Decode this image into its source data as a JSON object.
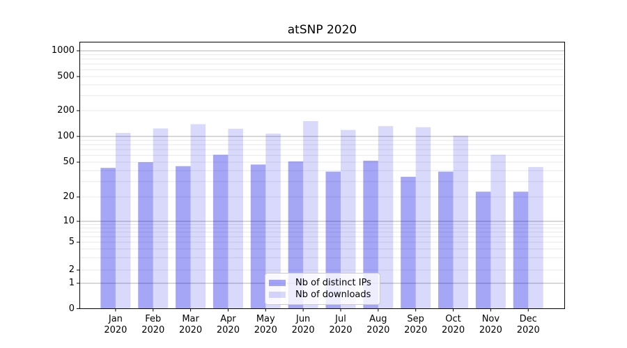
{
  "chart_data": {
    "type": "bar",
    "title": "atSNP 2020",
    "categories": [
      "Jan",
      "Feb",
      "Mar",
      "Apr",
      "May",
      "Jun",
      "Jul",
      "Aug",
      "Sep",
      "Oct",
      "Nov",
      "Dec"
    ],
    "year_label": "2020",
    "series": [
      {
        "name": "Nb of distinct IPs",
        "color": "rgba(0,0,230,0.35)",
        "values": [
          43,
          50,
          45,
          61,
          47,
          51,
          39,
          52,
          34,
          39,
          23,
          23
        ]
      },
      {
        "name": "Nb of downloads",
        "color": "rgba(0,0,230,0.15)",
        "values": [
          110,
          124,
          139,
          123,
          108,
          151,
          119,
          132,
          128,
          102,
          61,
          44
        ]
      }
    ],
    "y_axis": {
      "scale": "symlog",
      "ticks": [
        0,
        1,
        2,
        5,
        10,
        20,
        50,
        100,
        200,
        500,
        1000
      ],
      "major_gridlines": [
        1,
        10,
        100,
        1000
      ],
      "minor_gridlines": [
        2,
        3,
        4,
        5,
        6,
        7,
        8,
        9,
        20,
        30,
        40,
        50,
        60,
        70,
        80,
        90,
        200,
        300,
        400,
        500,
        600,
        700,
        800,
        900
      ],
      "ylim": [
        0,
        1300
      ]
    },
    "grid": true,
    "legend_position": "lower center inside plot",
    "colors": {
      "major_grid": "#b0b0b0",
      "minor_grid": "#e8e8e8",
      "spine": "#000000",
      "text": "#000000",
      "legend_border": "#cccccc"
    }
  }
}
